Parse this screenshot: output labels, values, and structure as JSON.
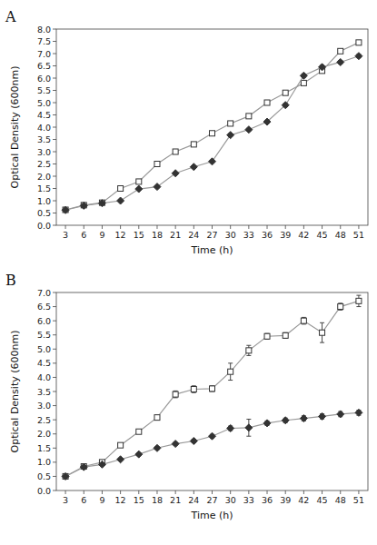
{
  "chart_data": [
    {
      "type": "line",
      "title": "A",
      "x_label": "Time (h)",
      "y_label": "Optical Density (600nm)",
      "x": [
        3,
        6,
        9,
        12,
        15,
        18,
        21,
        24,
        27,
        30,
        33,
        36,
        39,
        42,
        45,
        48,
        51
      ],
      "series": [
        {
          "color": "#999999",
          "marker": "open-square",
          "values": [
            0.63,
            0.82,
            0.92,
            1.5,
            1.78,
            2.5,
            3.0,
            3.3,
            3.75,
            4.15,
            4.45,
            5.0,
            5.4,
            5.8,
            6.3,
            7.1,
            7.45
          ],
          "yerr": [
            0.03,
            0.03,
            0.03,
            0.04,
            0.04,
            0.04,
            0.04,
            0.04,
            0.05,
            0.05,
            0.05,
            0.06,
            0.06,
            0.07,
            0.07,
            0.08,
            0.08
          ]
        },
        {
          "color": "#999999",
          "marker": "filled-diamond",
          "values": [
            0.62,
            0.8,
            0.9,
            1.0,
            1.48,
            1.57,
            2.12,
            2.38,
            2.6,
            3.68,
            3.9,
            4.22,
            4.9,
            6.1,
            6.45,
            6.65,
            6.9
          ],
          "yerr": [
            0.03,
            0.03,
            0.03,
            0.04,
            0.04,
            0.04,
            0.04,
            0.04,
            0.05,
            0.05,
            0.05,
            0.06,
            0.07,
            0.07,
            0.07,
            0.07,
            0.07
          ]
        }
      ],
      "xlim": [
        1.5,
        52.5
      ],
      "xticks": [
        3,
        6,
        9,
        12,
        15,
        18,
        21,
        24,
        27,
        30,
        33,
        36,
        39,
        42,
        45,
        48,
        51
      ],
      "ylim": [
        0.0,
        8.0
      ],
      "yticks": [
        {
          "value": 0,
          "label": "0.0"
        },
        0.5,
        {
          "value": 1,
          "label": "1.0"
        },
        1.5,
        {
          "value": 2,
          "label": "2.0"
        },
        2.5,
        {
          "value": 3,
          "label": "3.0"
        },
        3.5,
        {
          "value": 4,
          "label": "4.0"
        },
        4.5,
        {
          "value": 5,
          "label": "5.0"
        },
        5.5,
        {
          "value": 6,
          "label": "6.0"
        },
        6.5,
        {
          "value": 7,
          "label": "7.0"
        },
        7.5,
        {
          "value": 8,
          "label": "8.0"
        }
      ],
      "grid": false
    },
    {
      "type": "line",
      "title": "B",
      "x_label": "Time (h)",
      "y_label": "Optical Density (600nm)",
      "x": [
        3,
        6,
        9,
        12,
        15,
        18,
        21,
        24,
        27,
        30,
        33,
        36,
        39,
        42,
        45,
        48,
        51
      ],
      "series": [
        {
          "color": "#999999",
          "marker": "open-square",
          "values": [
            0.5,
            0.85,
            1.0,
            1.6,
            2.08,
            2.58,
            3.4,
            3.58,
            3.6,
            4.2,
            4.95,
            5.45,
            5.48,
            6.0,
            5.58,
            6.5,
            6.7
          ],
          "yerr": [
            0.03,
            0.04,
            0.04,
            0.05,
            0.06,
            0.08,
            0.12,
            0.12,
            0.1,
            0.3,
            0.18,
            0.1,
            0.1,
            0.12,
            0.35,
            0.12,
            0.2
          ]
        },
        {
          "color": "#999999",
          "marker": "filled-diamond",
          "values": [
            0.5,
            0.83,
            0.92,
            1.1,
            1.28,
            1.5,
            1.65,
            1.75,
            1.92,
            2.2,
            2.22,
            2.38,
            2.48,
            2.55,
            2.62,
            2.7,
            2.75
          ],
          "yerr": [
            0.03,
            0.04,
            0.03,
            0.04,
            0.05,
            0.05,
            0.05,
            0.06,
            0.06,
            0.08,
            0.3,
            0.08,
            0.08,
            0.09,
            0.09,
            0.09,
            0.09
          ]
        }
      ],
      "xlim": [
        1.5,
        52.5
      ],
      "xticks": [
        3,
        6,
        9,
        12,
        15,
        18,
        21,
        24,
        27,
        30,
        33,
        36,
        39,
        42,
        45,
        48,
        51
      ],
      "ylim": [
        0.0,
        7.0
      ],
      "yticks": [
        {
          "value": 0,
          "label": "0.0"
        },
        0.5,
        {
          "value": 1,
          "label": "1.0"
        },
        1.5,
        {
          "value": 2,
          "label": "2.0"
        },
        2.5,
        {
          "value": 3,
          "label": "3.0"
        },
        3.5,
        {
          "value": 4,
          "label": "4.0"
        },
        4.5,
        {
          "value": 5,
          "label": "5.0"
        },
        5.5,
        {
          "value": 6,
          "label": "6.0"
        },
        6.5,
        {
          "value": 7,
          "label": "7.0"
        }
      ],
      "grid": false
    }
  ]
}
